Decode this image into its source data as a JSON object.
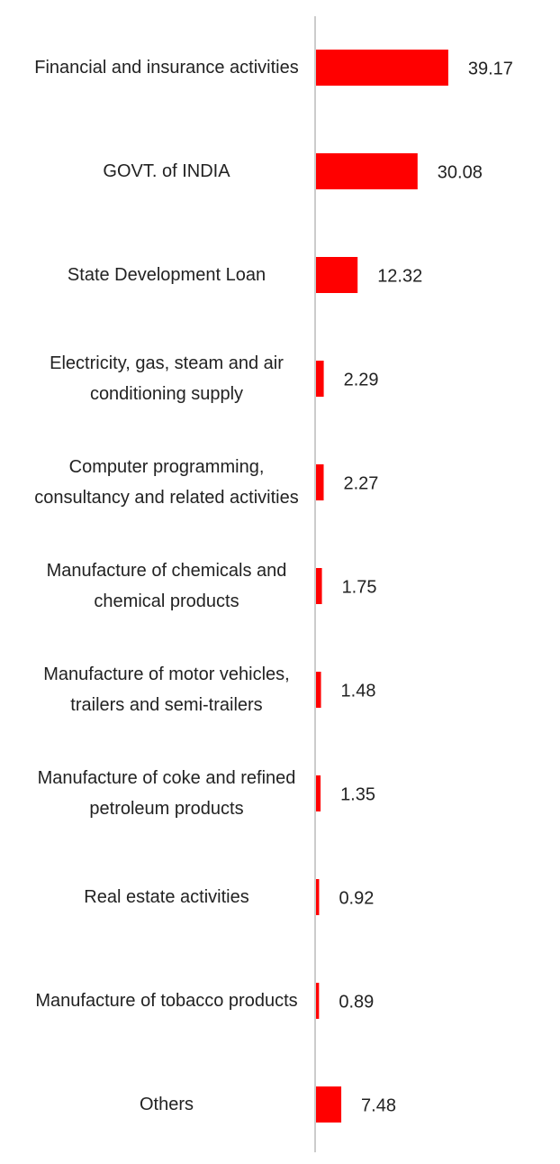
{
  "chart_data": {
    "type": "bar",
    "orientation": "horizontal",
    "categories": [
      "Financial and insurance activities",
      "GOVT. of INDIA",
      "State Development Loan",
      "Electricity, gas, steam and air conditioning supply",
      "Computer programming, consultancy and related activities",
      "Manufacture of chemicals and chemical products",
      "Manufacture of motor vehicles, trailers and semi-trailers",
      "Manufacture of coke and refined petroleum products",
      "Real estate activities",
      "Manufacture of tobacco products",
      "Others"
    ],
    "values": [
      39.17,
      30.08,
      12.32,
      2.29,
      2.27,
      1.75,
      1.48,
      1.35,
      0.92,
      0.89,
      7.48
    ],
    "color": "#ff0000",
    "xlim": [
      0,
      72
    ]
  }
}
